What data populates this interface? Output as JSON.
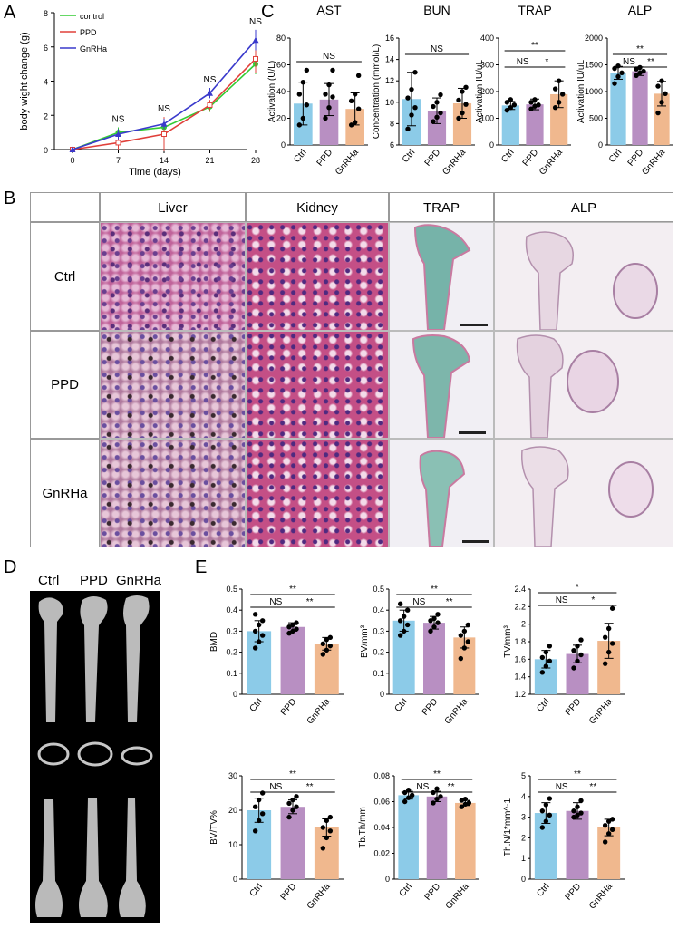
{
  "panels": {
    "a": "A",
    "b": "B",
    "c": "C",
    "d": "D",
    "e": "E"
  },
  "panel_a": {
    "legend": [
      "control",
      "PPD",
      "GnRHa"
    ],
    "colors": [
      "#33cc33",
      "#e0403a",
      "#3a3acc"
    ],
    "annotations": [
      "NS",
      "NS",
      "NS",
      "NS",
      "NS"
    ]
  },
  "panel_b": {
    "columns": [
      "Liver",
      "Kidney",
      "TRAP",
      "ALP"
    ],
    "rows": [
      "Ctrl",
      "PPD",
      "GnRHa"
    ]
  },
  "panel_d": {
    "columns": [
      "Ctrl",
      "PPD",
      "GnRHa"
    ]
  },
  "colors": {
    "ctrl": "#8ccbe8",
    "ppd": "#b88fc2",
    "gnrha": "#f0b88e"
  },
  "chart_data": [
    {
      "type": "line",
      "panel": "A",
      "x": [
        0,
        7,
        14,
        21,
        28
      ],
      "xlabel": "Time (days)",
      "ylabel": "body wight change (g)",
      "ylim": [
        0,
        8
      ],
      "yticks": [
        0,
        2,
        4,
        6,
        8
      ],
      "series": [
        {
          "name": "control",
          "values": [
            0,
            1.0,
            1.3,
            2.5,
            5.0
          ],
          "err": [
            0.1,
            0.3,
            0.3,
            0.3,
            0.6
          ]
        },
        {
          "name": "PPD",
          "values": [
            0,
            0.4,
            0.9,
            2.6,
            5.3
          ],
          "err": [
            0.1,
            0.4,
            1.0,
            0.3,
            0.8
          ]
        },
        {
          "name": "GnRHa",
          "values": [
            0,
            0.9,
            1.5,
            3.3,
            6.4
          ],
          "err": [
            0.1,
            0.3,
            0.3,
            0.3,
            0.6
          ]
        }
      ],
      "annotations": [
        "NS",
        "NS",
        "NS",
        "NS"
      ]
    },
    {
      "type": "bar",
      "panel": "C",
      "title": "AST",
      "ylabel": "Activation (U/L)",
      "categories": [
        "Ctrl",
        "PPD",
        "GnRHa"
      ],
      "values": [
        31,
        34,
        27
      ],
      "err": [
        16,
        12,
        12
      ],
      "ylim": [
        0,
        80
      ],
      "yticks": [
        0,
        20,
        40,
        60,
        80
      ],
      "points": [
        [
          15,
          20,
          30,
          38,
          47,
          56
        ],
        [
          20,
          28,
          36,
          38,
          45,
          56
        ],
        [
          15,
          17,
          27,
          33,
          38,
          52
        ]
      ],
      "annotations": [
        {
          "from": 0,
          "to": 2,
          "text": "NS"
        }
      ]
    },
    {
      "type": "bar",
      "panel": "C",
      "title": "BUN",
      "ylabel": "Concentration (mmol/L)",
      "categories": [
        "Ctrl",
        "PPD",
        "GnRHa"
      ],
      "values": [
        10.3,
        9.2,
        9.9
      ],
      "err": [
        2.5,
        1.2,
        1.4
      ],
      "ylim": [
        6,
        16
      ],
      "yticks": [
        6,
        8,
        10,
        12,
        14,
        16
      ],
      "points": [
        [
          7.5,
          8.8,
          9.5,
          10.4,
          11.2,
          12.8
        ],
        [
          8.2,
          8.6,
          9.0,
          9.6,
          10.0,
          10.7
        ],
        [
          8.5,
          9.0,
          9.8,
          10.2,
          11.0,
          11.4
        ]
      ],
      "annotations": [
        {
          "from": 0,
          "to": 2,
          "text": "NS"
        }
      ]
    },
    {
      "type": "bar",
      "panel": "C",
      "title": "TRAP",
      "ylabel": "Activation IU/uL",
      "categories": [
        "Ctrl",
        "PPD",
        "GnRHa"
      ],
      "values": [
        148,
        152,
        190
      ],
      "err": [
        15,
        20,
        50
      ],
      "ylim": [
        0,
        400
      ],
      "yticks": [
        0,
        100,
        200,
        300,
        400
      ],
      "points": [
        [
          130,
          140,
          150,
          160,
          170
        ],
        [
          135,
          145,
          150,
          160,
          170
        ],
        [
          140,
          160,
          190,
          210,
          240
        ]
      ],
      "annotations": [
        {
          "from": 0,
          "to": 1,
          "text": "NS"
        },
        {
          "from": 1,
          "to": 2,
          "text": "*"
        },
        {
          "from": 0,
          "to": 2,
          "text": "**"
        }
      ]
    },
    {
      "type": "bar",
      "panel": "C",
      "title": "ALP",
      "ylabel": "Activation IU/uL",
      "categories": [
        "Ctrl",
        "PPD",
        "GnRHa"
      ],
      "values": [
        1350,
        1380,
        960
      ],
      "err": [
        120,
        80,
        230
      ],
      "ylim": [
        0,
        2000
      ],
      "yticks": [
        0,
        500,
        1000,
        1500,
        2000
      ],
      "points": [
        [
          1150,
          1280,
          1350,
          1430,
          1480
        ],
        [
          1300,
          1350,
          1380,
          1420,
          1450
        ],
        [
          600,
          800,
          960,
          1100,
          1200
        ]
      ],
      "annotations": [
        {
          "from": 0,
          "to": 1,
          "text": "NS"
        },
        {
          "from": 1,
          "to": 2,
          "text": "**"
        },
        {
          "from": 0,
          "to": 2,
          "text": "**"
        }
      ]
    },
    {
      "type": "bar",
      "panel": "E",
      "ylabel": "BMD",
      "categories": [
        "Ctrl",
        "PPD",
        "GnRHa"
      ],
      "values": [
        0.3,
        0.32,
        0.24
      ],
      "err": [
        0.05,
        0.02,
        0.03
      ],
      "ylim": [
        0,
        0.5
      ],
      "yticks": [
        0,
        0.1,
        0.2,
        0.3,
        0.4,
        0.5
      ],
      "points": [
        [
          0.22,
          0.25,
          0.28,
          0.3,
          0.33,
          0.35,
          0.38
        ],
        [
          0.29,
          0.3,
          0.31,
          0.32,
          0.33,
          0.34
        ],
        [
          0.19,
          0.21,
          0.23,
          0.24,
          0.26,
          0.27
        ]
      ],
      "annotations": [
        {
          "from": 0,
          "to": 1,
          "text": "NS"
        },
        {
          "from": 1,
          "to": 2,
          "text": "**"
        },
        {
          "from": 0,
          "to": 2,
          "text": "**"
        }
      ]
    },
    {
      "type": "bar",
      "panel": "E",
      "ylabel": "BV/mm³",
      "categories": [
        "Ctrl",
        "PPD",
        "GnRHa"
      ],
      "values": [
        0.35,
        0.34,
        0.27
      ],
      "err": [
        0.05,
        0.03,
        0.05
      ],
      "ylim": [
        0,
        0.5
      ],
      "yticks": [
        0,
        0.1,
        0.2,
        0.3,
        0.4,
        0.5
      ],
      "points": [
        [
          0.28,
          0.3,
          0.33,
          0.35,
          0.37,
          0.4,
          0.43
        ],
        [
          0.3,
          0.32,
          0.34,
          0.35,
          0.36,
          0.38
        ],
        [
          0.17,
          0.22,
          0.25,
          0.28,
          0.3,
          0.33
        ]
      ],
      "annotations": [
        {
          "from": 0,
          "to": 1,
          "text": "NS"
        },
        {
          "from": 1,
          "to": 2,
          "text": "**"
        },
        {
          "from": 0,
          "to": 2,
          "text": "**"
        }
      ]
    },
    {
      "type": "bar",
      "panel": "E",
      "ylabel": "TV/mm³",
      "categories": [
        "Ctrl",
        "PPD",
        "GnRHa"
      ],
      "values": [
        1.6,
        1.66,
        1.81
      ],
      "err": [
        0.1,
        0.1,
        0.2
      ],
      "ylim": [
        1.2,
        2.4
      ],
      "yticks": [
        1.2,
        1.4,
        1.6,
        1.8,
        2.0,
        2.2,
        2.4
      ],
      "points": [
        [
          1.45,
          1.52,
          1.58,
          1.62,
          1.68,
          1.75
        ],
        [
          1.5,
          1.58,
          1.65,
          1.7,
          1.75,
          1.82
        ],
        [
          1.55,
          1.68,
          1.78,
          1.85,
          1.95,
          2.18
        ]
      ],
      "annotations": [
        {
          "from": 0,
          "to": 1,
          "text": "NS"
        },
        {
          "from": 1,
          "to": 2,
          "text": "*"
        },
        {
          "from": 0,
          "to": 2,
          "text": "*"
        }
      ]
    },
    {
      "type": "bar",
      "panel": "E",
      "ylabel": "BV/TV%",
      "categories": [
        "Ctrl",
        "PPD",
        "GnRHa"
      ],
      "values": [
        20,
        21,
        15
      ],
      "err": [
        3.5,
        2,
        2.5
      ],
      "ylim": [
        0,
        30
      ],
      "yticks": [
        0,
        10,
        20,
        30
      ],
      "points": [
        [
          14,
          17,
          19,
          21,
          23,
          25
        ],
        [
          18,
          20,
          21,
          22,
          23,
          24
        ],
        [
          9,
          12,
          14,
          15,
          17,
          18
        ]
      ],
      "annotations": [
        {
          "from": 0,
          "to": 1,
          "text": "NS"
        },
        {
          "from": 1,
          "to": 2,
          "text": "**"
        },
        {
          "from": 0,
          "to": 2,
          "text": "**"
        }
      ]
    },
    {
      "type": "bar",
      "panel": "E",
      "ylabel": "Tb.Th/mm",
      "categories": [
        "Ctrl",
        "PPD",
        "GnRHa"
      ],
      "values": [
        0.065,
        0.064,
        0.059
      ],
      "err": [
        0.003,
        0.004,
        0.002
      ],
      "ylim": [
        0,
        0.08
      ],
      "yticks": [
        0,
        0.02,
        0.04,
        0.06,
        0.08
      ],
      "points": [
        [
          0.06,
          0.063,
          0.065,
          0.067,
          0.069
        ],
        [
          0.059,
          0.062,
          0.064,
          0.067,
          0.07
        ],
        [
          0.056,
          0.058,
          0.059,
          0.061,
          0.062
        ]
      ],
      "annotations": [
        {
          "from": 0,
          "to": 1,
          "text": "NS"
        },
        {
          "from": 1,
          "to": 2,
          "text": "**"
        },
        {
          "from": 0,
          "to": 2,
          "text": "**"
        }
      ]
    },
    {
      "type": "bar",
      "panel": "E",
      "ylabel": "Th.N/1*mm^-1",
      "categories": [
        "Ctrl",
        "PPD",
        "GnRHa"
      ],
      "values": [
        3.2,
        3.3,
        2.5
      ],
      "err": [
        0.5,
        0.4,
        0.4
      ],
      "ylim": [
        0,
        5
      ],
      "yticks": [
        0,
        1,
        2,
        3,
        4,
        5
      ],
      "points": [
        [
          2.5,
          2.8,
          3.1,
          3.3,
          3.6,
          3.9
        ],
        [
          3.0,
          3.1,
          3.2,
          3.3,
          3.5,
          3.8
        ],
        [
          1.8,
          2.2,
          2.4,
          2.6,
          2.8,
          2.9
        ]
      ],
      "annotations": [
        {
          "from": 0,
          "to": 1,
          "text": "NS"
        },
        {
          "from": 1,
          "to": 2,
          "text": "**"
        },
        {
          "from": 0,
          "to": 2,
          "text": "**"
        }
      ]
    }
  ]
}
